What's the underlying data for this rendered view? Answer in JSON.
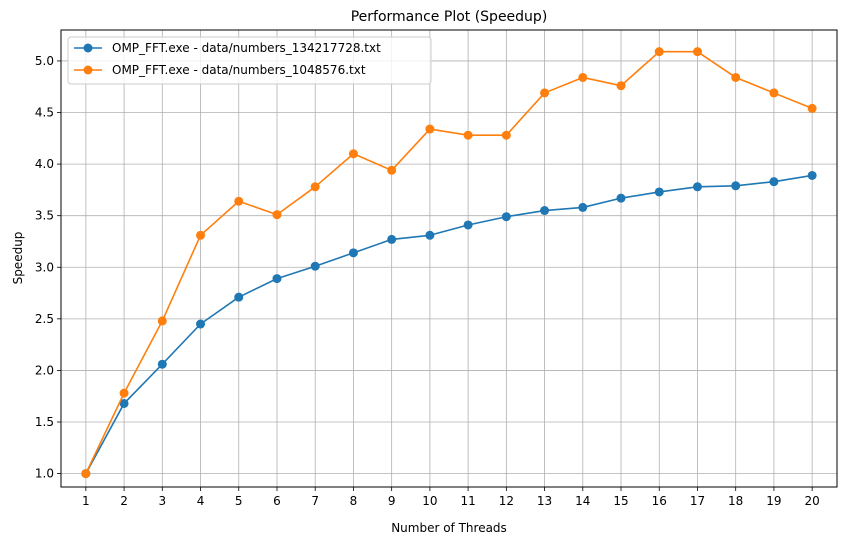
{
  "chart_data": {
    "type": "line",
    "title": "Performance Plot (Speedup)",
    "xlabel": "Number of Threads",
    "ylabel": "Speedup",
    "x": [
      1,
      2,
      3,
      4,
      5,
      6,
      7,
      8,
      9,
      10,
      11,
      12,
      13,
      14,
      15,
      16,
      17,
      18,
      19,
      20
    ],
    "xlim": [
      0.35,
      20.65
    ],
    "ylim": [
      0.87,
      5.3
    ],
    "yticks": [
      1.0,
      1.5,
      2.0,
      2.5,
      3.0,
      3.5,
      4.0,
      4.5,
      5.0
    ],
    "ytick_labels": [
      "1.0",
      "1.5",
      "2.0",
      "2.5",
      "3.0",
      "3.5",
      "4.0",
      "4.5",
      "5.0"
    ],
    "xtick_labels": [
      "1",
      "2",
      "3",
      "4",
      "5",
      "6",
      "7",
      "8",
      "9",
      "10",
      "11",
      "12",
      "13",
      "14",
      "15",
      "16",
      "17",
      "18",
      "19",
      "20"
    ],
    "grid": true,
    "legend_position": "top-left",
    "series": [
      {
        "name": "OMP_FFT.exe - data/numbers_134217728.txt",
        "color": "#1f77b4",
        "marker": "circle",
        "values": [
          1.0,
          1.68,
          2.06,
          2.45,
          2.71,
          2.89,
          3.01,
          3.14,
          3.27,
          3.31,
          3.41,
          3.49,
          3.55,
          3.58,
          3.67,
          3.73,
          3.78,
          3.79,
          3.83,
          3.89
        ]
      },
      {
        "name": "OMP_FFT.exe - data/numbers_1048576.txt",
        "color": "#ff7f0e",
        "marker": "circle",
        "values": [
          1.0,
          1.78,
          2.48,
          3.31,
          3.64,
          3.51,
          3.78,
          4.1,
          3.94,
          4.34,
          4.28,
          4.28,
          4.69,
          4.84,
          4.76,
          5.09,
          5.09,
          4.84,
          4.69,
          4.54
        ]
      }
    ]
  }
}
